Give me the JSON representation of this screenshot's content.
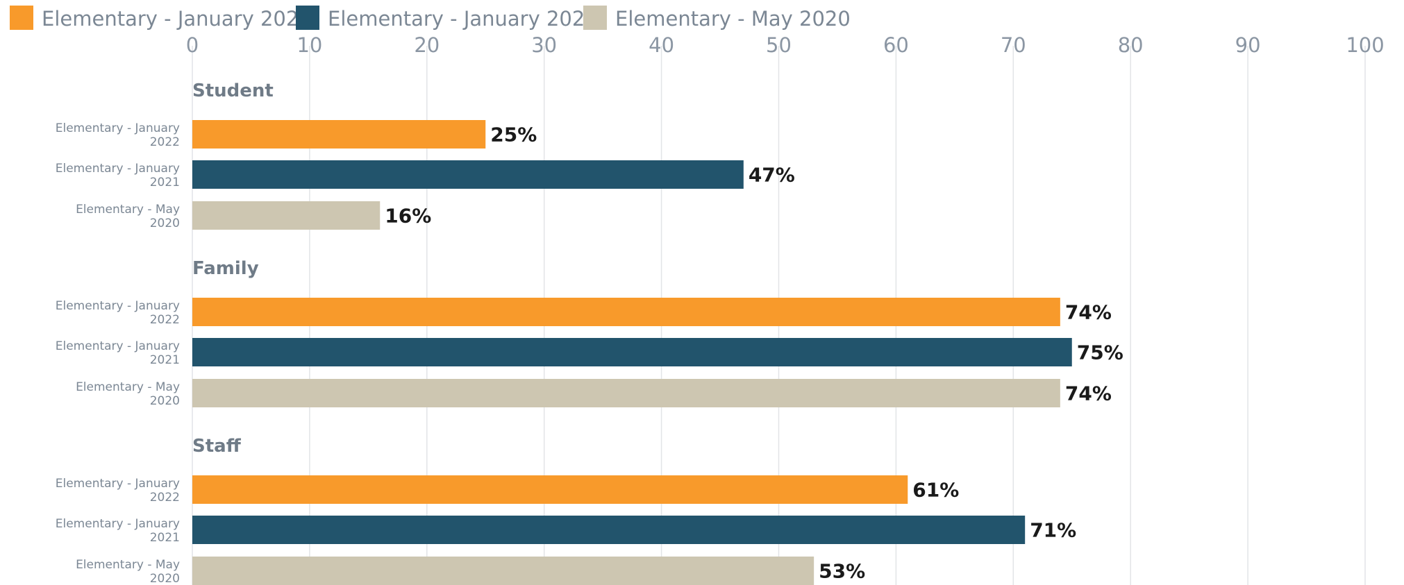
{
  "chart_data": {
    "type": "bar",
    "orientation": "horizontal",
    "xlim": [
      0,
      100
    ],
    "ticks": [
      0,
      10,
      20,
      30,
      40,
      50,
      60,
      70,
      80,
      90,
      100
    ],
    "grid": true,
    "legend_position": "top-left",
    "series": [
      {
        "name": "Elementary - January 2022",
        "color": "#f89a2b"
      },
      {
        "name": "Elementary - January 2021",
        "color": "#22546c"
      },
      {
        "name": "Elementary - May 2020",
        "color": "#cdc6b1"
      }
    ],
    "groups": [
      {
        "label": "Student",
        "values": [
          25,
          47,
          16
        ]
      },
      {
        "label": "Family",
        "values": [
          74,
          75,
          74
        ]
      },
      {
        "label": "Staff",
        "values": [
          61,
          71,
          53
        ]
      }
    ],
    "category_labels": [
      [
        "Elementary - January",
        "2022"
      ],
      [
        "Elementary - January",
        "2021"
      ],
      [
        "Elementary - May",
        "2020"
      ]
    ],
    "value_suffix": "%"
  }
}
